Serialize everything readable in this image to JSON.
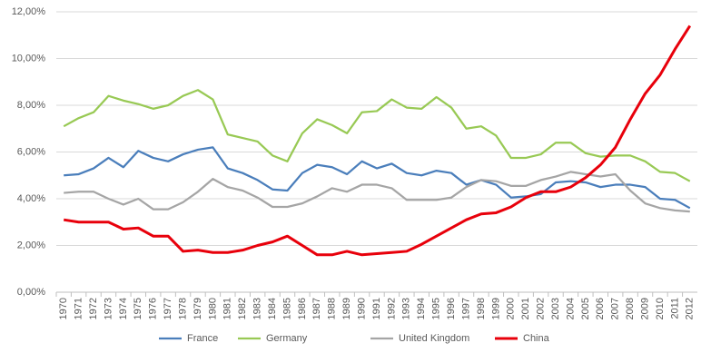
{
  "chart_data": {
    "type": "line",
    "categories": [
      "1970",
      "1971",
      "1972",
      "1973",
      "1974",
      "1975",
      "1976",
      "1977",
      "1978",
      "1979",
      "1980",
      "1981",
      "1982",
      "1983",
      "1984",
      "1985",
      "1986",
      "1987",
      "1988",
      "1989",
      "1990",
      "1991",
      "1992",
      "1993",
      "1994",
      "1995",
      "1996",
      "1997",
      "1998",
      "1999",
      "2000",
      "2001",
      "2002",
      "2003",
      "2004",
      "2005",
      "2006",
      "2007",
      "2008",
      "2009",
      "2010",
      "2011",
      "2012"
    ],
    "series": [
      {
        "name": "France",
        "color": "#4a7ebb",
        "values": [
          5.0,
          5.05,
          5.3,
          5.75,
          5.35,
          6.05,
          5.75,
          5.6,
          5.9,
          6.1,
          6.2,
          5.3,
          5.1,
          4.8,
          4.4,
          4.35,
          5.1,
          5.45,
          5.35,
          5.05,
          5.6,
          5.3,
          5.5,
          5.1,
          5.0,
          5.2,
          5.1,
          4.6,
          4.8,
          4.6,
          4.05,
          4.1,
          4.2,
          4.7,
          4.75,
          4.7,
          4.5,
          4.6,
          4.6,
          4.5,
          4.0,
          3.95,
          3.6
        ]
      },
      {
        "name": "Germany",
        "color": "#98c954",
        "values": [
          7.1,
          7.45,
          7.7,
          8.4,
          8.2,
          8.05,
          7.85,
          8.0,
          8.4,
          8.65,
          8.25,
          6.75,
          6.6,
          6.45,
          5.85,
          5.6,
          6.8,
          7.4,
          7.15,
          6.8,
          7.7,
          7.75,
          8.25,
          7.9,
          7.85,
          8.35,
          7.9,
          7.0,
          7.1,
          6.7,
          5.75,
          5.75,
          5.9,
          6.4,
          6.4,
          5.95,
          5.8,
          5.85,
          5.85,
          5.6,
          5.15,
          5.1,
          4.75
        ]
      },
      {
        "name": "United Kingdom",
        "color": "#a5a5a5",
        "values": [
          4.25,
          4.3,
          4.3,
          4.0,
          3.75,
          4.0,
          3.55,
          3.55,
          3.85,
          4.3,
          4.85,
          4.5,
          4.35,
          4.05,
          3.65,
          3.65,
          3.8,
          4.1,
          4.45,
          4.3,
          4.6,
          4.6,
          4.45,
          3.95,
          3.95,
          3.95,
          4.05,
          4.5,
          4.8,
          4.75,
          4.55,
          4.55,
          4.8,
          4.95,
          5.15,
          5.05,
          4.95,
          5.05,
          4.35,
          3.8,
          3.6,
          3.5,
          3.45
        ]
      },
      {
        "name": "China",
        "color": "#e8000b",
        "values": [
          3.1,
          3.0,
          3.0,
          3.0,
          2.7,
          2.75,
          2.4,
          2.4,
          1.75,
          1.8,
          1.7,
          1.7,
          1.8,
          2.0,
          2.15,
          2.4,
          2.0,
          1.6,
          1.6,
          1.75,
          1.6,
          1.65,
          1.7,
          1.75,
          2.05,
          2.4,
          2.75,
          3.1,
          3.35,
          3.4,
          3.65,
          4.05,
          4.3,
          4.3,
          4.5,
          4.9,
          5.45,
          6.2,
          7.4,
          8.5,
          9.3,
          10.4,
          11.4
        ]
      }
    ],
    "ylim": [
      0,
      12
    ],
    "yticks": [
      {
        "value": 0,
        "label": "0,00%"
      },
      {
        "value": 2,
        "label": "2,00%"
      },
      {
        "value": 4,
        "label": "4,00%"
      },
      {
        "value": 6,
        "label": "6,00%"
      },
      {
        "value": 8,
        "label": "8,00%"
      },
      {
        "value": 10,
        "label": "10,00%"
      },
      {
        "value": 12,
        "label": "12,00%"
      }
    ],
    "grid": true,
    "legend": "bottom"
  }
}
